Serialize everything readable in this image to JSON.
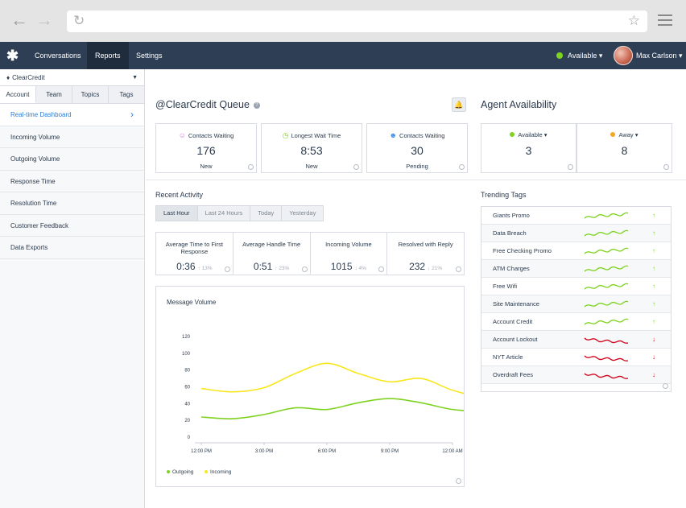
{
  "browser": {
    "back_icon": "arrow-left-icon",
    "forward_icon": "arrow-right-icon",
    "reload_icon": "reload-icon",
    "star_icon": "star-icon",
    "menu_icon": "hamburger-icon"
  },
  "nav": {
    "tabs": [
      {
        "label": "Conversations",
        "active": false
      },
      {
        "label": "Reports",
        "active": true
      },
      {
        "label": "Settings",
        "active": false
      }
    ],
    "status": "Available",
    "status_color": "#7ed321",
    "user_name": "Max Carlson"
  },
  "sidebar": {
    "account": "ClearCredit",
    "tabs": [
      "Account",
      "Team",
      "Topics",
      "Tags"
    ],
    "active_tab": "Account",
    "items": [
      {
        "label": "Real-time Dashboard",
        "active": true
      },
      {
        "label": "Incoming Volume",
        "active": false
      },
      {
        "label": "Outgoing Volume",
        "active": false
      },
      {
        "label": "Response Time",
        "active": false
      },
      {
        "label": "Resolution Time",
        "active": false
      },
      {
        "label": "Customer Feedback",
        "active": false
      },
      {
        "label": "Data Exports",
        "active": false
      }
    ]
  },
  "queue": {
    "title": "@ClearCredit Queue",
    "help": "?",
    "cards": [
      {
        "label": "Contacts Waiting",
        "value": "176",
        "sub": "New",
        "icon": "person-icon"
      },
      {
        "label": "Longest Wait Time",
        "value": "8:53",
        "sub": "New",
        "icon": "clock-icon"
      },
      {
        "label": "Contacts Waiting",
        "value": "30",
        "sub": "Pending",
        "icon": "people-icon"
      }
    ]
  },
  "agents": {
    "title": "Agent Availability",
    "cards": [
      {
        "label": "Available ▾",
        "value": "3",
        "color": "#7ed321"
      },
      {
        "label": "Away ▾",
        "value": "8",
        "color": "#f5a623"
      }
    ]
  },
  "recent": {
    "title": "Recent Activity",
    "ranges": [
      "Last Hour",
      "Last 24 Hours",
      "Today",
      "Yesterday"
    ],
    "active_range": "Last Hour",
    "metrics": [
      {
        "label": "Average Time to First Response",
        "value": "0:36",
        "change": "↑ 13%"
      },
      {
        "label": "Average Handle Time",
        "value": "0:51",
        "change": "↑ 23%"
      },
      {
        "label": "Incoming Volume",
        "value": "1015",
        "change": "↓ 4%"
      },
      {
        "label": "Resolved with Reply",
        "value": "232",
        "change": "↓ 21%"
      }
    ]
  },
  "chart_data": {
    "type": "line",
    "title": "Message Volume",
    "x": [
      "12:00 PM",
      "3:00 PM",
      "6:00 PM",
      "9:00 PM",
      "12:00 AM"
    ],
    "ylim": [
      0,
      120
    ],
    "yticks": [
      0,
      20,
      40,
      60,
      80,
      100,
      120
    ],
    "series": [
      {
        "name": "Outgoing",
        "color": "#7ed321",
        "points": [
          [
            0.0,
            24
          ],
          [
            0.5,
            22
          ],
          [
            1.0,
            27
          ],
          [
            1.5,
            35
          ],
          [
            2.0,
            33
          ],
          [
            2.5,
            41
          ],
          [
            3.0,
            46
          ],
          [
            3.5,
            41
          ],
          [
            4.0,
            33
          ],
          [
            4.5,
            31
          ],
          [
            5.0,
            33
          ]
        ]
      },
      {
        "name": "Incoming",
        "color": "#f8e71c",
        "points": [
          [
            0.0,
            58
          ],
          [
            0.5,
            54
          ],
          [
            1.0,
            59
          ],
          [
            1.5,
            76
          ],
          [
            2.0,
            88
          ],
          [
            2.5,
            76
          ],
          [
            3.0,
            66
          ],
          [
            3.5,
            70
          ],
          [
            4.0,
            56
          ],
          [
            4.5,
            48
          ],
          [
            5.0,
            54
          ]
        ]
      }
    ],
    "legend": "bottom-left",
    "grid": false
  },
  "trending": {
    "title": "Trending Tags",
    "tags": [
      {
        "name": "Giants Promo",
        "trend": "up"
      },
      {
        "name": "Data Breach",
        "trend": "up"
      },
      {
        "name": "Free Checking Promo",
        "trend": "up"
      },
      {
        "name": "ATM Charges",
        "trend": "up"
      },
      {
        "name": "Free Wifi",
        "trend": "up"
      },
      {
        "name": "Site Maintenance",
        "trend": "up"
      },
      {
        "name": "Account Credit",
        "trend": "up"
      },
      {
        "name": "Account Lockout",
        "trend": "down"
      },
      {
        "name": "NYT Article",
        "trend": "down"
      },
      {
        "name": "Overdraft Fees",
        "trend": "down"
      }
    ],
    "up_arrow": "↑",
    "down_arrow": "↓"
  }
}
